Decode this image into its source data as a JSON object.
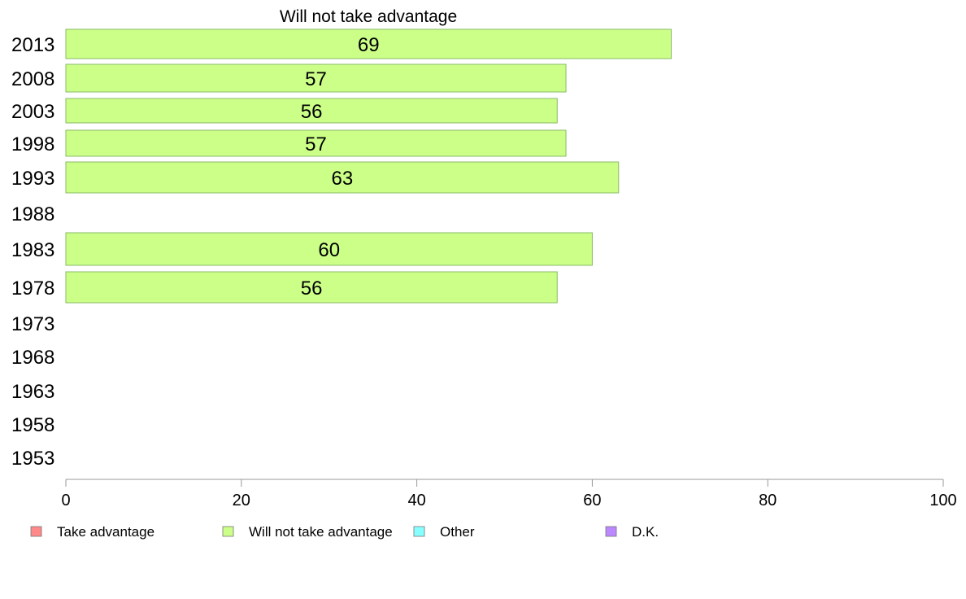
{
  "chart_data": {
    "type": "bar",
    "orientation": "horizontal",
    "title": "Will not take advantage",
    "categories": [
      "2013",
      "2008",
      "2003",
      "1998",
      "1993",
      "1988",
      "1983",
      "1978",
      "1973",
      "1968",
      "1963",
      "1958",
      "1953"
    ],
    "series": [
      {
        "name": "Will not take advantage",
        "color": "#ccff88",
        "values": [
          69,
          57,
          56,
          57,
          63,
          null,
          60,
          56,
          null,
          null,
          null,
          null,
          null
        ]
      }
    ],
    "xlim": [
      0,
      100
    ],
    "xticks": [
      0,
      20,
      40,
      60,
      80,
      100
    ],
    "grid": false,
    "legend_position": "bottom",
    "legend": [
      {
        "label": "Take advantage",
        "color": "#ff8888"
      },
      {
        "label": "Will not take advantage",
        "color": "#ccff88"
      },
      {
        "label": "Other",
        "color": "#88ffff"
      },
      {
        "label": "D.K.",
        "color": "#bb88ff"
      }
    ],
    "bar_stroke_color": "#88bb66",
    "axis_color": "#999999"
  }
}
